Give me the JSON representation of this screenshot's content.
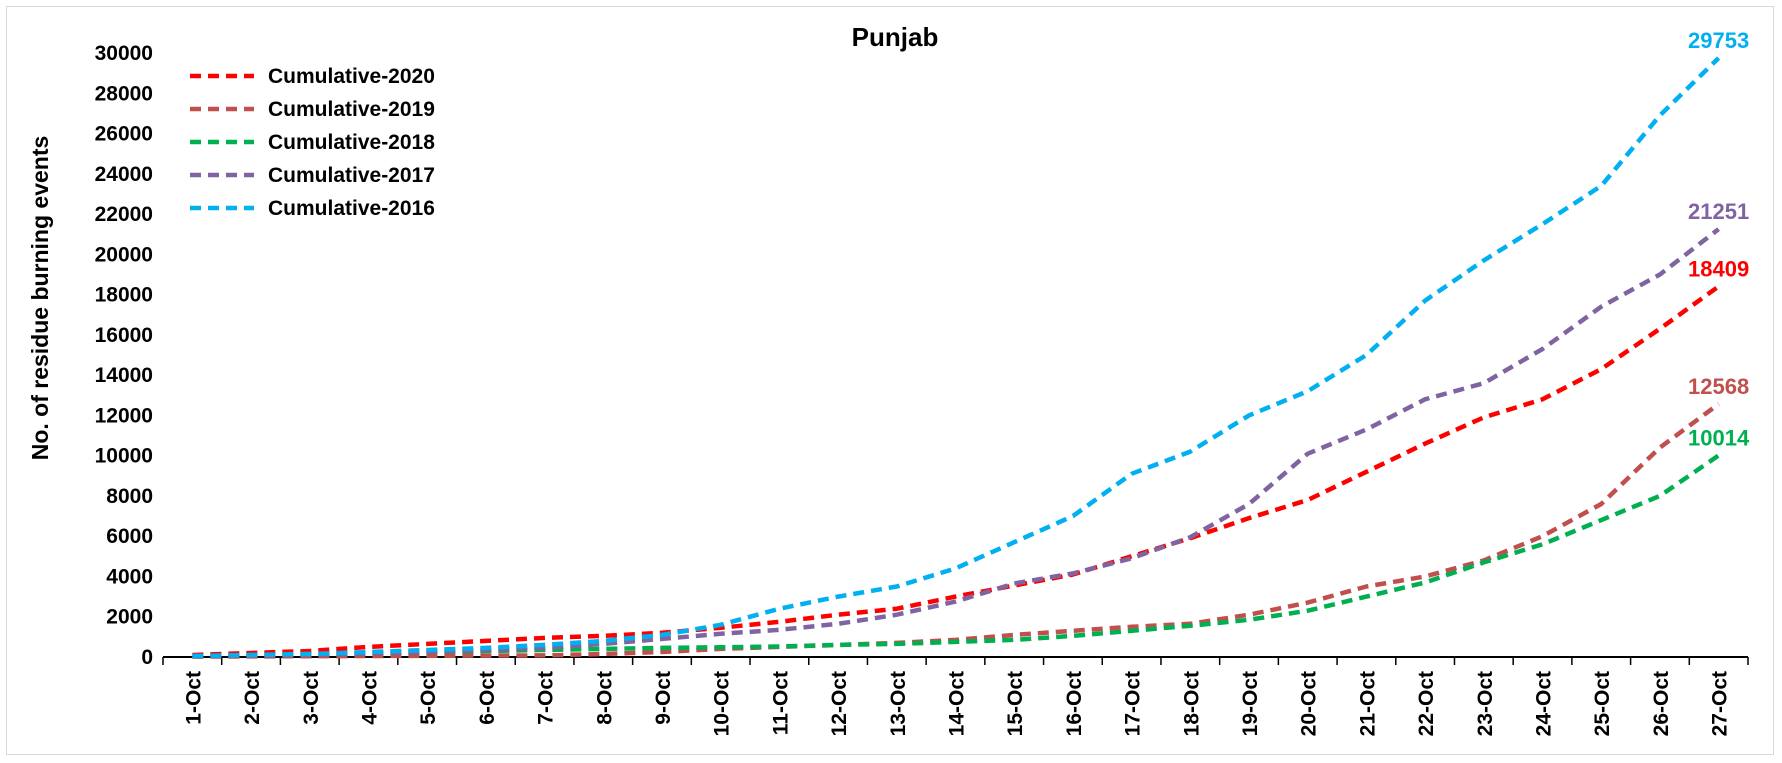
{
  "chart_data": {
    "type": "line",
    "title": "Punjab",
    "xlabel": "",
    "ylabel": "No. of residue burning events",
    "ylim": [
      0,
      30000
    ],
    "ytick_step": 2000,
    "grid": false,
    "legend_position": "top-left",
    "x": [
      "1-Oct",
      "2-Oct",
      "3-Oct",
      "4-Oct",
      "5-Oct",
      "6-Oct",
      "7-Oct",
      "8-Oct",
      "9-Oct",
      "10-Oct",
      "11-Oct",
      "12-Oct",
      "13-Oct",
      "14-Oct",
      "15-Oct",
      "16-Oct",
      "17-Oct",
      "18-Oct",
      "19-Oct",
      "20-Oct",
      "21-Oct",
      "22-Oct",
      "23-Oct",
      "24-Oct",
      "25-Oct",
      "26-Oct",
      "27-Oct"
    ],
    "series": [
      {
        "name": "Cumulative-2020",
        "color": "#ff0000",
        "end_label": "18409",
        "values": [
          100,
          200,
          300,
          500,
          650,
          800,
          950,
          1050,
          1200,
          1450,
          1750,
          2100,
          2400,
          3000,
          3550,
          4100,
          5000,
          5900,
          6900,
          7800,
          9200,
          10600,
          11900,
          12800,
          14300,
          16300,
          18409
        ]
      },
      {
        "name": "Cumulative-2019",
        "color": "#c0504d",
        "end_label": "12568",
        "values": [
          20,
          30,
          40,
          50,
          60,
          70,
          80,
          150,
          250,
          400,
          500,
          600,
          700,
          850,
          1100,
          1300,
          1500,
          1650,
          2100,
          2700,
          3500,
          4000,
          4800,
          6000,
          7600,
          10400,
          12568
        ]
      },
      {
        "name": "Cumulative-2018",
        "color": "#00b050",
        "end_label": "10014",
        "values": [
          50,
          100,
          150,
          200,
          250,
          300,
          350,
          400,
          450,
          480,
          520,
          600,
          650,
          750,
          850,
          1050,
          1300,
          1550,
          1850,
          2300,
          3000,
          3700,
          4700,
          5600,
          6800,
          8000,
          10014
        ]
      },
      {
        "name": "Cumulative-2017",
        "color": "#8064a2",
        "end_label": "21251",
        "values": [
          50,
          80,
          120,
          180,
          250,
          350,
          450,
          650,
          900,
          1150,
          1350,
          1650,
          2100,
          2750,
          3650,
          4150,
          4900,
          5950,
          7600,
          10100,
          11300,
          12800,
          13600,
          15300,
          17400,
          19000,
          21251
        ]
      },
      {
        "name": "Cumulative-2016",
        "color": "#00b0f0",
        "end_label": "29753",
        "values": [
          50,
          100,
          150,
          250,
          350,
          450,
          600,
          800,
          1100,
          1600,
          2400,
          3000,
          3500,
          4400,
          5700,
          7000,
          9100,
          10200,
          12000,
          13200,
          15000,
          17700,
          19700,
          21500,
          23400,
          26900,
          29753
        ]
      }
    ]
  }
}
